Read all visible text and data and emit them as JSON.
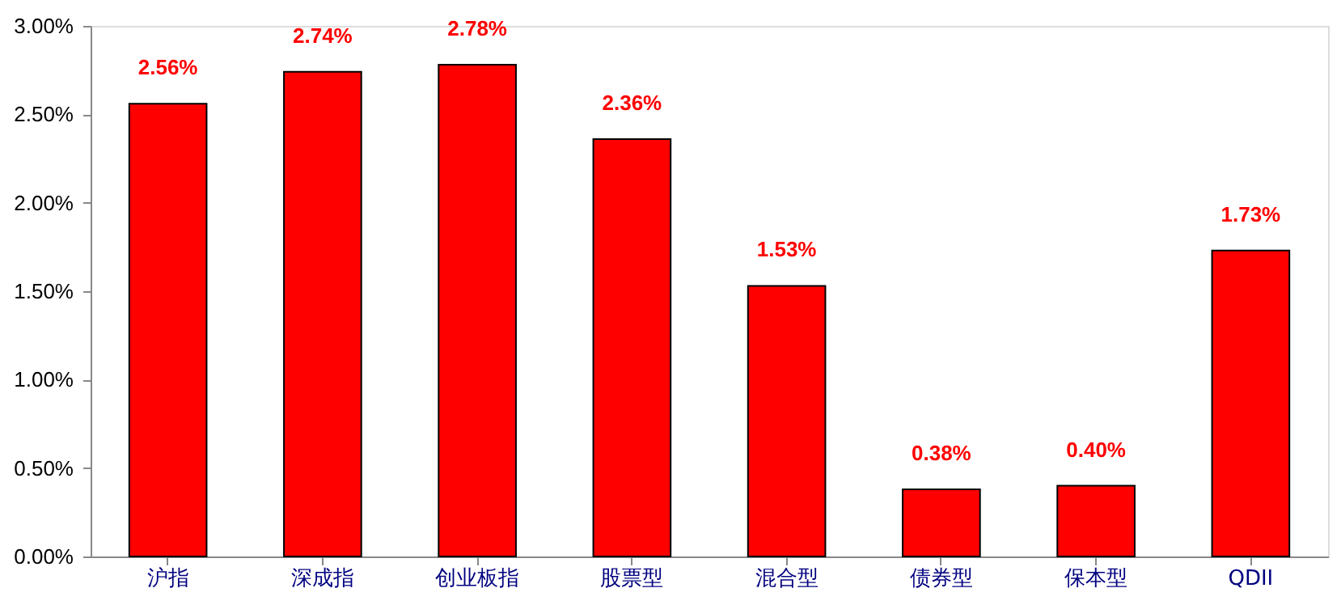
{
  "chart_data": {
    "type": "bar",
    "categories": [
      "沪指",
      "深成指",
      "创业板指",
      "股票型",
      "混合型",
      "债券型",
      "保本型",
      "QDII"
    ],
    "values": [
      2.56,
      2.74,
      2.78,
      2.36,
      1.53,
      0.38,
      0.4,
      1.73
    ],
    "value_labels": [
      "2.56%",
      "2.74%",
      "2.78%",
      "2.36%",
      "1.53%",
      "0.38%",
      "0.40%",
      "1.73%"
    ],
    "color": "#ff0000",
    "ylim": [
      0,
      3
    ],
    "yticks": [
      {
        "value": 0,
        "label": "0.00%"
      },
      {
        "value": 0.5,
        "label": "0.50%"
      },
      {
        "value": 1,
        "label": "1.00%"
      },
      {
        "value": 1.5,
        "label": "1.50%"
      },
      {
        "value": 2,
        "label": "2.00%"
      },
      {
        "value": 2.5,
        "label": "2.50%"
      },
      {
        "value": 3,
        "label": "3.00%"
      }
    ],
    "grid": false
  }
}
